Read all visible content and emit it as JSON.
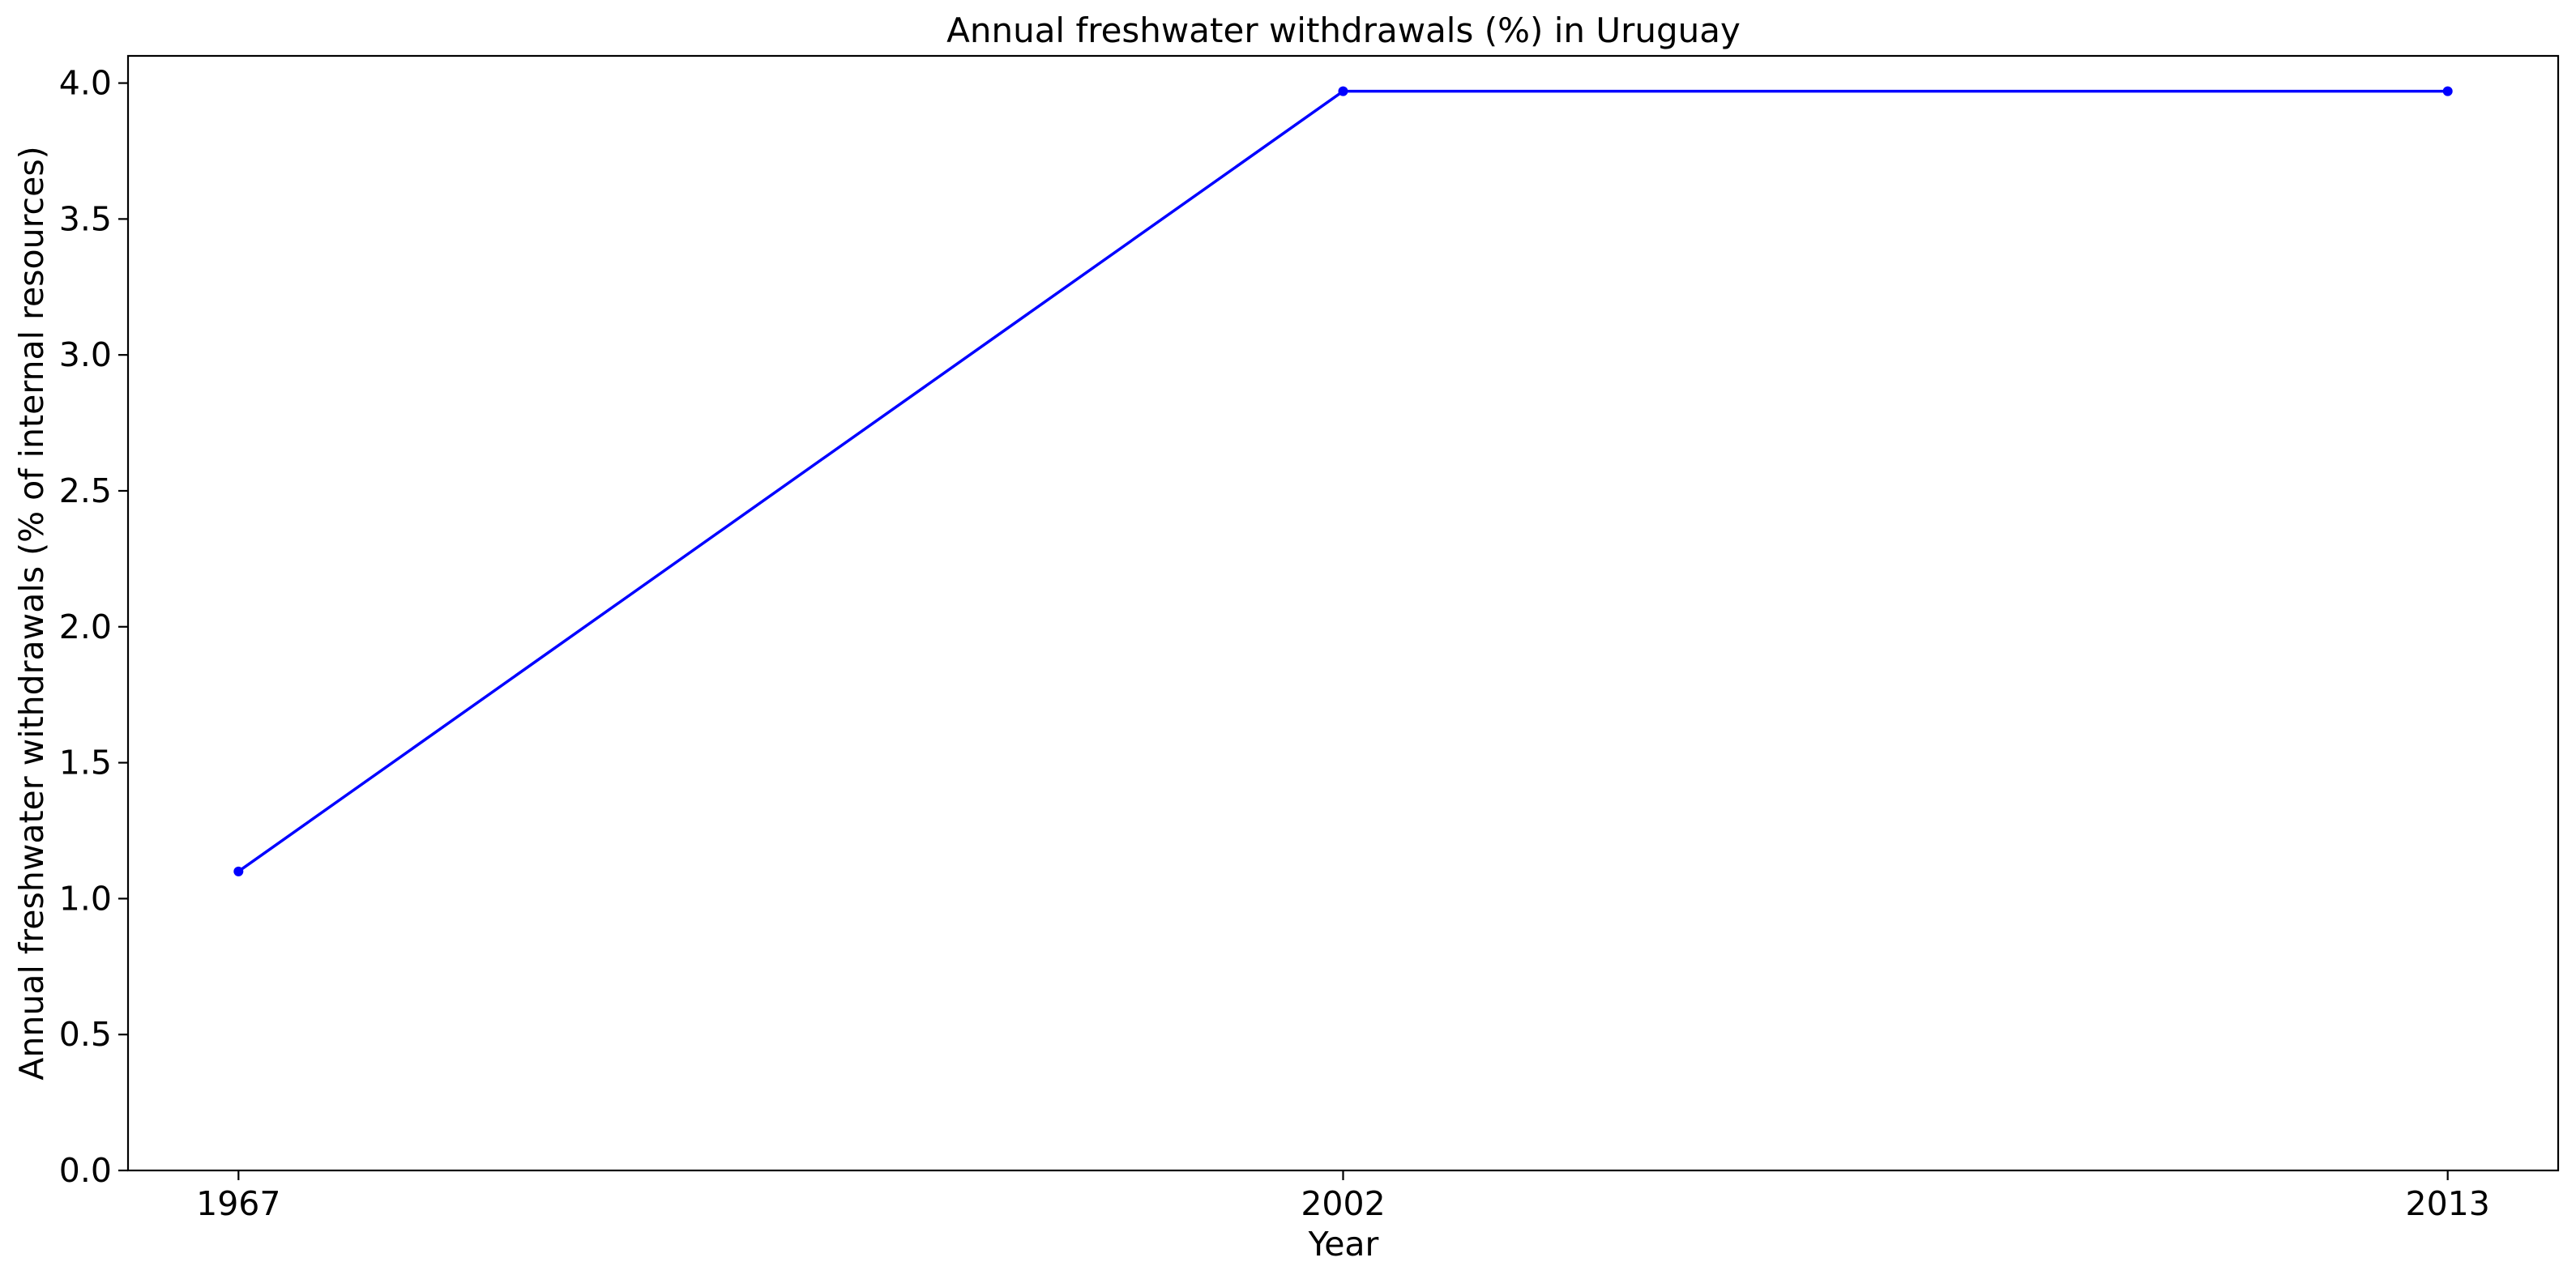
{
  "chart_data": {
    "type": "line",
    "title": "Annual freshwater withdrawals (%) in Uruguay",
    "xlabel": "Year",
    "ylabel": "Annual freshwater withdrawals (% of internal resources)",
    "categories": [
      "1967",
      "2002",
      "2013"
    ],
    "series": [
      {
        "values": [
          1.1,
          3.97,
          3.97
        ]
      }
    ],
    "ylim": [
      0,
      4.1
    ],
    "yticks": [
      "0.0",
      "0.5",
      "1.0",
      "1.5",
      "2.0",
      "2.5",
      "3.0",
      "3.5",
      "4.0"
    ],
    "grid": false,
    "legend": "none",
    "colors": {
      "line": "#0000ff",
      "axes": "#000000",
      "background": "#ffffff"
    }
  }
}
